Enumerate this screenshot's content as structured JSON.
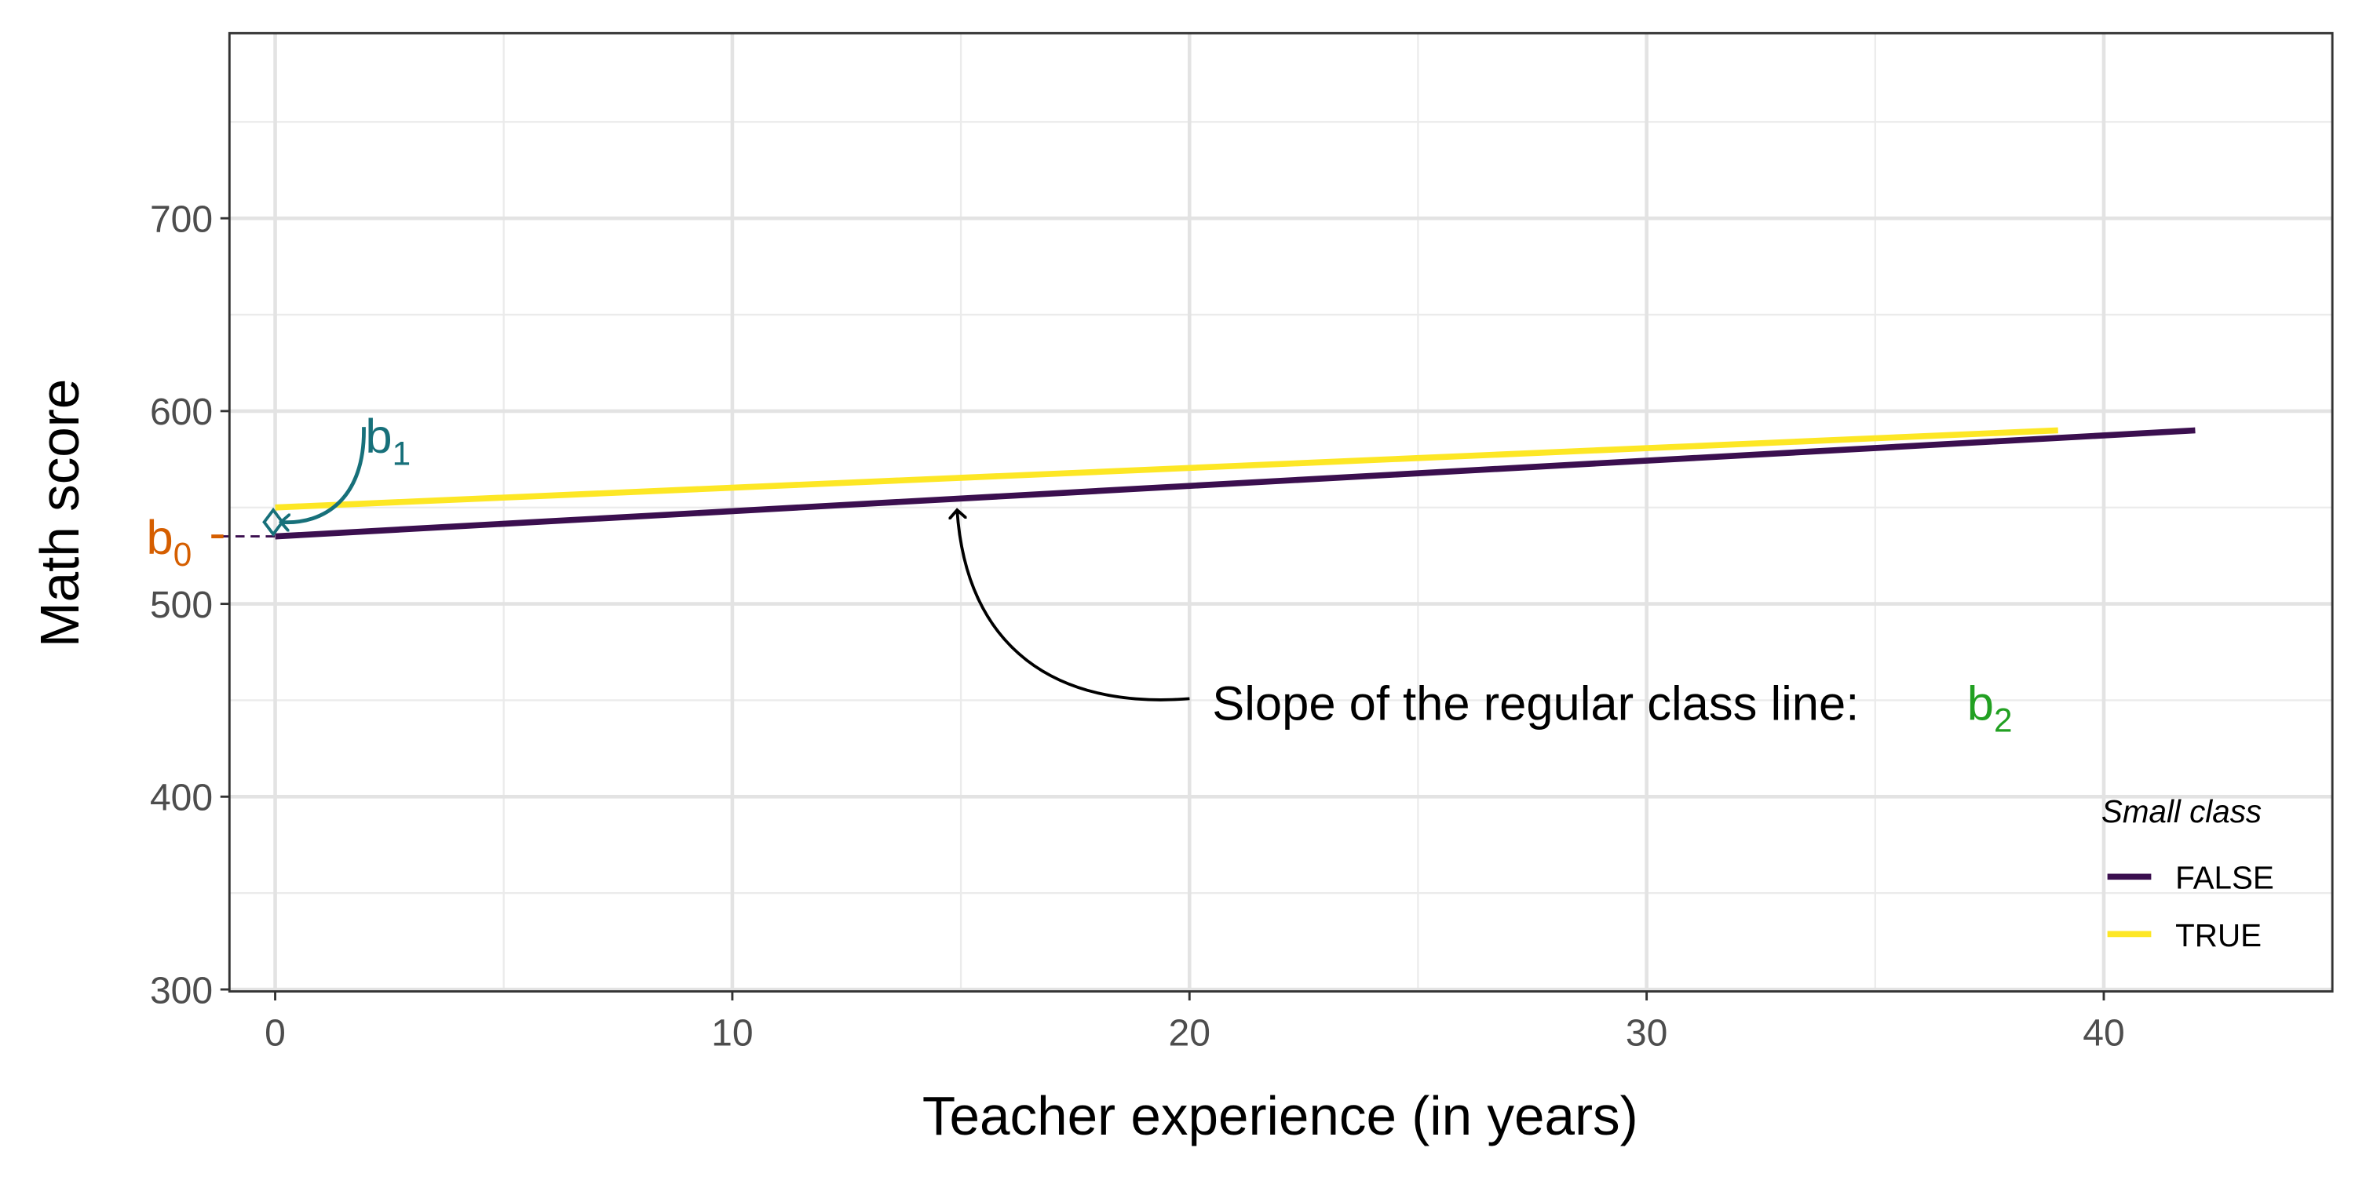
{
  "chart_data": {
    "type": "line",
    "x_label": "Teacher experience (in years)",
    "y_label": "Math score",
    "series": [
      {
        "name": "FALSE",
        "color": "#3b0f4f",
        "x": [
          0,
          42
        ],
        "values": [
          535,
          590
        ]
      },
      {
        "name": "TRUE",
        "color": "#fde725",
        "x": [
          0,
          39
        ],
        "values": [
          550,
          590
        ]
      }
    ],
    "xlim": [
      -1,
      45
    ],
    "ylim": [
      299,
      796
    ],
    "xticks": [
      0,
      10,
      20,
      30,
      40
    ],
    "yticks": [
      300,
      400,
      500,
      600,
      700
    ],
    "xminorticks": [
      5,
      15,
      25,
      35
    ],
    "yminorticks": [
      350,
      450,
      550,
      650,
      750
    ],
    "grid": true,
    "legend": {
      "title": "Small class",
      "position": "right"
    },
    "annotations": [
      {
        "text": "b",
        "subscript": "0",
        "color": "#d55e00"
      },
      {
        "text": "b",
        "subscript": "1",
        "color": "#17707a"
      },
      {
        "text": "Slope of the regular class line:",
        "color": "#000000"
      },
      {
        "text": "b",
        "subscript": "2",
        "color": "#22a022"
      }
    ]
  }
}
